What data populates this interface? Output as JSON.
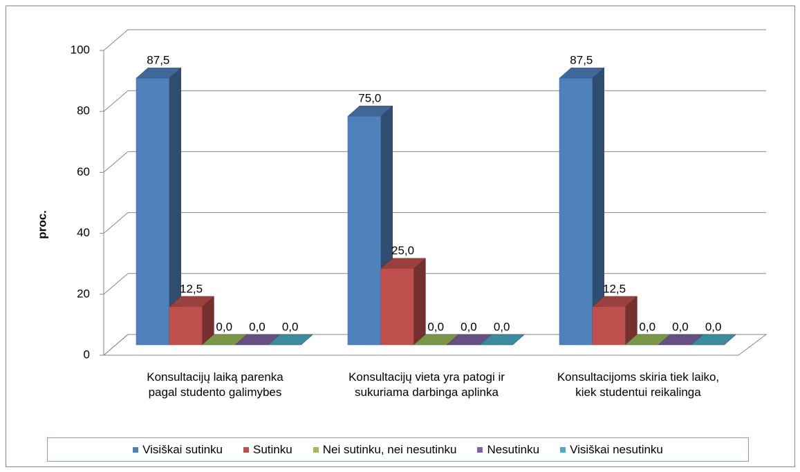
{
  "chart_data": {
    "type": "bar3d",
    "y_label": "proc.",
    "categories": [
      "Konsultacijų laiką parenka pagal studento galimybes",
      "Konsultacijų vieta yra patogi ir sukuriama darbinga aplinka",
      "Konsultacijoms skiria tiek laiko, kiek studentui reikalinga"
    ],
    "series": [
      {
        "name": "Visiškai sutinku",
        "color": "#4f81bd",
        "values": [
          87.5,
          75.0,
          87.5
        ],
        "value_labels": [
          "87,5",
          "75,0",
          "87,5"
        ]
      },
      {
        "name": "Sutinku",
        "color": "#c0504d",
        "values": [
          12.5,
          25.0,
          12.5
        ],
        "value_labels": [
          "12,5",
          "25,0",
          "12,5"
        ]
      },
      {
        "name": "Nei sutinku, nei nesutinku",
        "color": "#9bbb59",
        "values": [
          0,
          0,
          0
        ],
        "value_labels": [
          "0,0",
          "0,0",
          "0,0"
        ]
      },
      {
        "name": "Nesutinku",
        "color": "#8064a2",
        "values": [
          0,
          0,
          0
        ],
        "value_labels": [
          "0,0",
          "0,0",
          "0,0"
        ]
      },
      {
        "name": "Visiškai nesutinku",
        "color": "#4bacc6",
        "values": [
          0,
          0,
          0
        ],
        "value_labels": [
          "0,0",
          "0,0",
          "0,0"
        ]
      }
    ],
    "ylim": [
      0,
      100
    ],
    "yticks": [
      0,
      20,
      40,
      60,
      80,
      100
    ],
    "grid": true,
    "legend": "bottom"
  }
}
